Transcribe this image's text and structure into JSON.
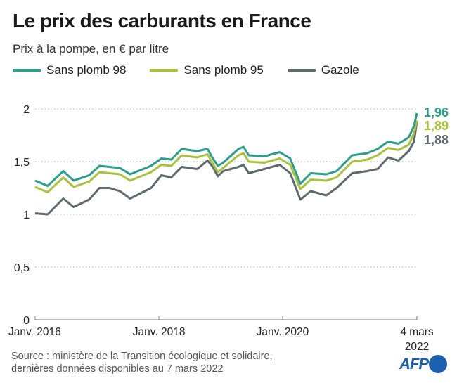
{
  "chart_data": {
    "type": "line",
    "title": "Le prix des carburants en France",
    "subtitle": "Prix à la pompe, en € par litre",
    "ylim": [
      0,
      2
    ],
    "yticks": [
      0,
      0.5,
      1,
      1.5,
      2
    ],
    "ytick_labels": [
      "0",
      "0,5",
      "1",
      "1,5",
      "2"
    ],
    "xlim": [
      "2016-01-01",
      "2022-03-04"
    ],
    "xticks": [
      "2016-01-01",
      "2018-01-01",
      "2020-01-01",
      "2022-03-04"
    ],
    "xtick_labels": [
      "Janv. 2016",
      "Janv. 2018",
      "Janv. 2020",
      "4 mars\n2022"
    ],
    "grid": "horizontal dotted",
    "legend_placement": "top",
    "x": [
      "2016-01",
      "2016-03",
      "2016-06",
      "2016-08",
      "2016-11",
      "2017-01",
      "2017-03",
      "2017-05",
      "2017-07",
      "2017-09",
      "2017-11",
      "2018-01",
      "2018-03",
      "2018-05",
      "2018-08",
      "2018-10",
      "2018-11",
      "2018-12",
      "2019-01",
      "2019-04",
      "2019-05",
      "2019-06",
      "2019-09",
      "2019-12",
      "2020-02",
      "2020-04",
      "2020-06",
      "2020-09",
      "2020-11",
      "2021-02",
      "2021-05",
      "2021-07",
      "2021-09",
      "2021-11",
      "2022-01",
      "2022-02",
      "2022-03-04"
    ],
    "series": [
      {
        "name": "Sans plomb 98",
        "color": "#2b9e8a",
        "end_label": "1,96",
        "values": [
          1.32,
          1.27,
          1.41,
          1.32,
          1.37,
          1.46,
          1.45,
          1.44,
          1.38,
          1.42,
          1.46,
          1.53,
          1.52,
          1.62,
          1.6,
          1.62,
          1.53,
          1.46,
          1.49,
          1.62,
          1.64,
          1.56,
          1.55,
          1.59,
          1.53,
          1.29,
          1.39,
          1.38,
          1.41,
          1.56,
          1.58,
          1.62,
          1.69,
          1.67,
          1.73,
          1.84,
          1.96
        ]
      },
      {
        "name": "Sans plomb 95",
        "color": "#a9c23b",
        "end_label": "1,89",
        "values": [
          1.26,
          1.21,
          1.35,
          1.26,
          1.31,
          1.4,
          1.39,
          1.38,
          1.32,
          1.36,
          1.4,
          1.47,
          1.46,
          1.56,
          1.54,
          1.57,
          1.48,
          1.4,
          1.44,
          1.56,
          1.58,
          1.5,
          1.49,
          1.53,
          1.47,
          1.24,
          1.33,
          1.32,
          1.35,
          1.5,
          1.52,
          1.56,
          1.63,
          1.61,
          1.66,
          1.77,
          1.89
        ]
      },
      {
        "name": "Gazole",
        "color": "#5e6a70",
        "end_label": "1,88",
        "values": [
          1.01,
          1.0,
          1.15,
          1.07,
          1.14,
          1.25,
          1.25,
          1.22,
          1.15,
          1.2,
          1.25,
          1.37,
          1.35,
          1.45,
          1.43,
          1.51,
          1.45,
          1.36,
          1.41,
          1.45,
          1.47,
          1.39,
          1.43,
          1.47,
          1.39,
          1.14,
          1.22,
          1.18,
          1.25,
          1.39,
          1.41,
          1.43,
          1.54,
          1.51,
          1.6,
          1.69,
          1.88
        ]
      }
    ]
  },
  "source": [
    "Source : ministère de la Transition écologique et solidaire,",
    "dernières données disponibles au 7 mars 2022"
  ],
  "logo": "AFP"
}
